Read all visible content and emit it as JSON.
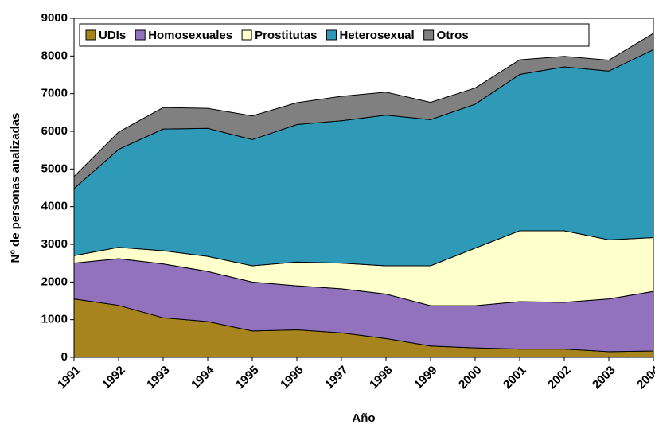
{
  "chart_data": {
    "type": "stacked_area",
    "xlabel": "Año",
    "ylabel": "Nº de personas analizadas",
    "x": [
      1991,
      1992,
      1993,
      1994,
      1995,
      1996,
      1997,
      1998,
      1999,
      2000,
      2001,
      2002,
      2003,
      2004
    ],
    "xlim": [
      1991,
      2004
    ],
    "xticks": [
      1991,
      1992,
      1993,
      1994,
      1995,
      1996,
      1997,
      1998,
      1999,
      2000,
      2001,
      2002,
      2003,
      2004
    ],
    "ylim": [
      0,
      9000
    ],
    "yticks": [
      0,
      1000,
      2000,
      3000,
      4000,
      5000,
      6000,
      7000,
      8000,
      9000
    ],
    "legend": "top-left",
    "series": [
      {
        "name": "UDIs",
        "color": "#a8841e",
        "values": [
          1550,
          1380,
          1050,
          950,
          700,
          730,
          650,
          500,
          300,
          250,
          220,
          220,
          150,
          170
        ]
      },
      {
        "name": "Homosexuales",
        "color": "#9272bc",
        "values": [
          950,
          1240,
          1430,
          1330,
          1300,
          1170,
          1170,
          1180,
          1070,
          1120,
          1260,
          1240,
          1400,
          1580
        ]
      },
      {
        "name": "Prostitutas",
        "color": "#ffffcc",
        "values": [
          200,
          300,
          350,
          400,
          430,
          630,
          680,
          750,
          1060,
          1530,
          1880,
          1900,
          1570,
          1430
        ]
      },
      {
        "name": "Heterosexual",
        "color": "#2e9ab8",
        "values": [
          1780,
          2600,
          3230,
          3400,
          3350,
          3650,
          3780,
          4000,
          3880,
          3820,
          4150,
          4350,
          4480,
          4990
        ]
      },
      {
        "name": "Otros",
        "color": "#808080",
        "values": [
          320,
          460,
          570,
          530,
          630,
          580,
          650,
          610,
          460,
          430,
          390,
          280,
          290,
          430
        ]
      }
    ]
  }
}
